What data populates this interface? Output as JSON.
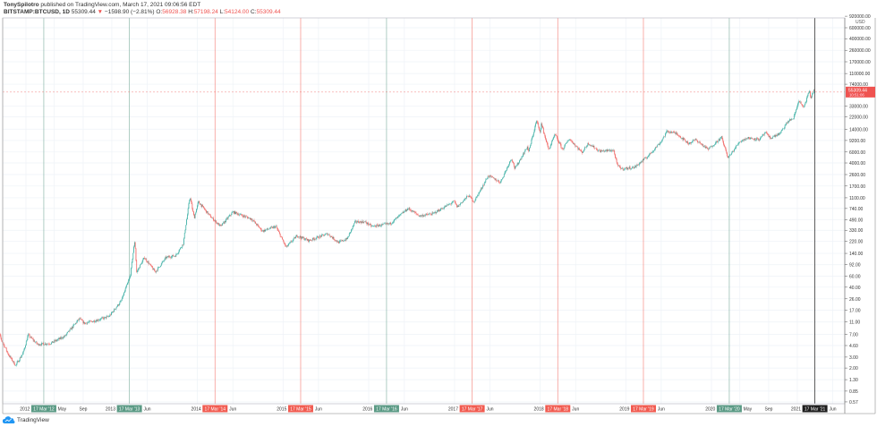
{
  "header": {
    "author": "TonySpilotro",
    "published_text": "published on TradingView.com, March 17, 2021 09:06:56 EDT",
    "symbol": "BITSTAMP:BTCUSD, 1D",
    "last": "55309.44",
    "change_arrow": "▼",
    "change": "−1598.90 (−2.81%)",
    "open_label": "O:",
    "open": "56928.38",
    "high_label": "H:",
    "high": "57198.24",
    "low_label": "L:",
    "low": "54124.00",
    "close_label": "C:",
    "close": "55309.44"
  },
  "footer": {
    "logo_text": "TradingView"
  },
  "colors": {
    "up": "#26a69a",
    "down": "#ef5350",
    "green_marker": "#5b9a85",
    "red_marker": "#f15b50",
    "black_marker": "#1e1e1e",
    "grid": "#eef2f7"
  },
  "chart_data": {
    "type": "candlestick",
    "title": "",
    "y_scale": "log",
    "y_unit": "USD",
    "ylim": [
      0.57,
      920000
    ],
    "grid": true,
    "current_price": {
      "value": 55309.44,
      "label": "55309.44",
      "countdown": "10:51:06"
    },
    "y_ticks": [
      "920000.00",
      "600000.00",
      "400000.00",
      "260000.00",
      "170000.00",
      "110000.00",
      "74000.00",
      "33000.00",
      "22000.00",
      "14000.00",
      "9200.00",
      "6000.00",
      "4000.00",
      "2600.00",
      "1700.00",
      "1100.00",
      "740.00",
      "490.00",
      "330.00",
      "220.00",
      "140.00",
      "92.00",
      "60.00",
      "40.00",
      "26.00",
      "17.00",
      "11.00",
      "7.00",
      "4.60",
      "3.00",
      "2.00",
      "1.30",
      "0.85",
      "0.57"
    ],
    "x_ticks": [
      {
        "date": "2012-01-01",
        "label": "2012"
      },
      {
        "date": "2012-05-01",
        "label": "May"
      },
      {
        "date": "2012-09-01",
        "label": "Sep"
      },
      {
        "date": "2013-01-01",
        "label": "2013"
      },
      {
        "date": "2013-06-01",
        "label": "Jun"
      },
      {
        "date": "2014-01-01",
        "label": "2014"
      },
      {
        "date": "2014-06-01",
        "label": "Jun"
      },
      {
        "date": "2015-01-01",
        "label": "2015"
      },
      {
        "date": "2015-06-01",
        "label": "Jun"
      },
      {
        "date": "2016-01-01",
        "label": "2016"
      },
      {
        "date": "2016-06-01",
        "label": "Jun"
      },
      {
        "date": "2017-01-01",
        "label": "2017"
      },
      {
        "date": "2017-06-01",
        "label": "Jun"
      },
      {
        "date": "2018-01-01",
        "label": "2018"
      },
      {
        "date": "2018-06-01",
        "label": "Jun"
      },
      {
        "date": "2019-01-01",
        "label": "2019"
      },
      {
        "date": "2019-06-01",
        "label": "Jun"
      },
      {
        "date": "2020-01-01",
        "label": "2020"
      },
      {
        "date": "2020-05-01",
        "label": "May"
      },
      {
        "date": "2020-09-01",
        "label": "Sep"
      },
      {
        "date": "2021-01-01",
        "label": "2021"
      },
      {
        "date": "2021-06-01",
        "label": "Jun"
      }
    ],
    "markers": [
      {
        "date": "2012-03-17",
        "label": "17 Mar '12",
        "color": "green"
      },
      {
        "date": "2013-03-17",
        "label": "17 Mar '13",
        "color": "green"
      },
      {
        "date": "2014-03-17",
        "label": "17 Mar '14",
        "color": "red"
      },
      {
        "date": "2015-03-17",
        "label": "17 Mar '15",
        "color": "red"
      },
      {
        "date": "2016-03-17",
        "label": "17 Mar '16",
        "color": "green"
      },
      {
        "date": "2017-03-17",
        "label": "17 Mar '17",
        "color": "red"
      },
      {
        "date": "2018-03-17",
        "label": "17 Mar '18",
        "color": "red"
      },
      {
        "date": "2019-03-17",
        "label": "17 Mar '19",
        "color": "red"
      },
      {
        "date": "2020-03-17",
        "label": "17 Mar '20",
        "color": "green"
      },
      {
        "date": "2021-03-17",
        "label": "17 Mar '21",
        "color": "black"
      }
    ],
    "anchors": [
      [
        "2011-08-20",
        11
      ],
      [
        "2011-09-20",
        5.5
      ],
      [
        "2011-10-20",
        3.2
      ],
      [
        "2011-11-18",
        2.2
      ],
      [
        "2011-12-20",
        3.5
      ],
      [
        "2012-01-10",
        6.8
      ],
      [
        "2012-02-20",
        4.8
      ],
      [
        "2012-04-15",
        5
      ],
      [
        "2012-06-15",
        6.5
      ],
      [
        "2012-08-16",
        12.5
      ],
      [
        "2012-09-05",
        10.5
      ],
      [
        "2012-10-20",
        11.5
      ],
      [
        "2012-12-20",
        13.5
      ],
      [
        "2013-02-10",
        24
      ],
      [
        "2013-03-20",
        60
      ],
      [
        "2013-04-09",
        230
      ],
      [
        "2013-04-17",
        70
      ],
      [
        "2013-05-20",
        120
      ],
      [
        "2013-07-05",
        70
      ],
      [
        "2013-08-20",
        120
      ],
      [
        "2013-10-01",
        130
      ],
      [
        "2013-11-01",
        200
      ],
      [
        "2013-11-30",
        1150
      ],
      [
        "2013-12-18",
        520
      ],
      [
        "2014-01-05",
        950
      ],
      [
        "2014-02-25",
        550
      ],
      [
        "2014-04-10",
        380
      ],
      [
        "2014-06-01",
        650
      ],
      [
        "2014-08-20",
        500
      ],
      [
        "2014-10-05",
        320
      ],
      [
        "2014-12-01",
        380
      ],
      [
        "2015-01-14",
        175
      ],
      [
        "2015-03-01",
        270
      ],
      [
        "2015-04-20",
        225
      ],
      [
        "2015-07-10",
        290
      ],
      [
        "2015-08-25",
        210
      ],
      [
        "2015-10-01",
        240
      ],
      [
        "2015-11-04",
        450
      ],
      [
        "2015-12-15",
        450
      ],
      [
        "2016-01-15",
        380
      ],
      [
        "2016-04-01",
        420
      ],
      [
        "2016-06-17",
        740
      ],
      [
        "2016-08-05",
        560
      ],
      [
        "2016-10-01",
        610
      ],
      [
        "2016-12-31",
        960
      ],
      [
        "2017-01-12",
        780
      ],
      [
        "2017-03-01",
        1200
      ],
      [
        "2017-03-25",
        950
      ],
      [
        "2017-05-25",
        2500
      ],
      [
        "2017-07-15",
        1950
      ],
      [
        "2017-09-01",
        4800
      ],
      [
        "2017-09-15",
        3200
      ],
      [
        "2017-11-08",
        7400
      ],
      [
        "2017-11-12",
        5900
      ],
      [
        "2017-12-17",
        19500
      ],
      [
        "2017-12-30",
        12500
      ],
      [
        "2018-01-06",
        17000
      ],
      [
        "2018-02-06",
        6500
      ],
      [
        "2018-03-05",
        11500
      ],
      [
        "2018-04-06",
        6600
      ],
      [
        "2018-05-05",
        9800
      ],
      [
        "2018-06-28",
        5900
      ],
      [
        "2018-07-25",
        8300
      ],
      [
        "2018-09-10",
        6200
      ],
      [
        "2018-11-10",
        6400
      ],
      [
        "2018-11-25",
        3700
      ],
      [
        "2018-12-15",
        3200
      ],
      [
        "2019-02-07",
        3400
      ],
      [
        "2019-04-02",
        5000
      ],
      [
        "2019-05-30",
        8700
      ],
      [
        "2019-06-26",
        13000
      ],
      [
        "2019-08-06",
        11900
      ],
      [
        "2019-09-25",
        8200
      ],
      [
        "2019-10-26",
        9500
      ],
      [
        "2019-12-17",
        6600
      ],
      [
        "2020-02-13",
        10300
      ],
      [
        "2020-03-12",
        4800
      ],
      [
        "2020-04-30",
        8800
      ],
      [
        "2020-06-01",
        10100
      ],
      [
        "2020-07-25",
        9600
      ],
      [
        "2020-08-17",
        12300
      ],
      [
        "2020-09-08",
        10000
      ],
      [
        "2020-10-20",
        12000
      ],
      [
        "2020-11-24",
        19000
      ],
      [
        "2020-12-16",
        21000
      ],
      [
        "2021-01-08",
        41000
      ],
      [
        "2021-01-27",
        30500
      ],
      [
        "2021-02-21",
        57000
      ],
      [
        "2021-02-28",
        44000
      ],
      [
        "2021-03-13",
        61000
      ],
      [
        "2021-03-17",
        55309.44
      ]
    ]
  }
}
